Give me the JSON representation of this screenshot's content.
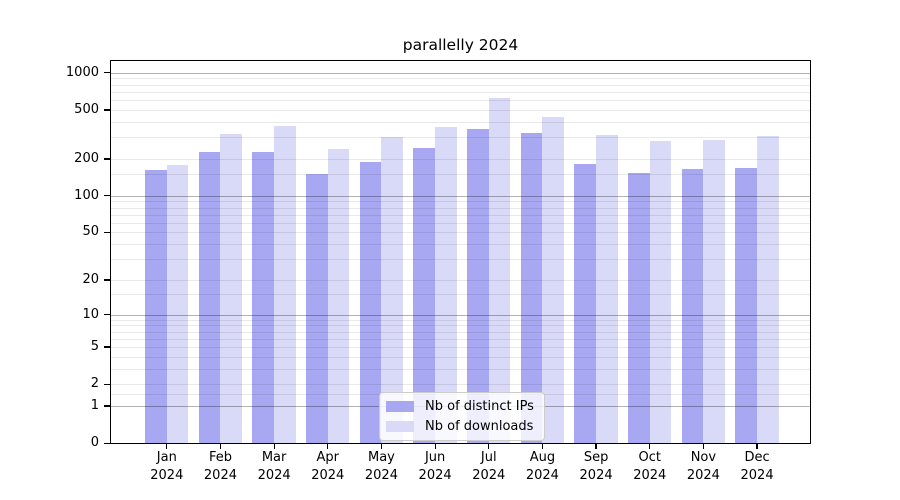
{
  "title": "parallelly 2024",
  "colors": {
    "distinct_ips_bar": "#a8a8f2",
    "downloads_bar": "#d9d9f8",
    "axis": "#000000",
    "major_grid": "rgba(0,0,0,0.30)",
    "minor_grid": "rgba(0,0,0,0.085)"
  },
  "chart_data": {
    "type": "bar",
    "title": "parallelly 2024",
    "categories": [
      "Jan",
      "Feb",
      "Mar",
      "Apr",
      "May",
      "Jun",
      "Jul",
      "Aug",
      "Sep",
      "Oct",
      "Nov",
      "Dec"
    ],
    "category_year": "2024",
    "series": [
      {
        "name": "Nb of distinct IPs",
        "color": "#a8a8f2",
        "values": [
          162,
          227,
          227,
          150,
          188,
          245,
          350,
          324,
          181,
          152,
          165,
          168
        ]
      },
      {
        "name": "Nb of downloads",
        "color": "#d9d9f8",
        "values": [
          178,
          318,
          369,
          240,
          300,
          363,
          620,
          437,
          312,
          279,
          284,
          308
        ]
      }
    ],
    "xlabel": "",
    "ylabel": "",
    "y_axis": {
      "scale": "log1p",
      "tick_labels": [
        "1000",
        "500",
        "200",
        "100",
        "50",
        "20",
        "10",
        "5",
        "2",
        "1",
        "0"
      ],
      "tick_values": [
        1000,
        500,
        200,
        100,
        50,
        20,
        10,
        5,
        2,
        1,
        0
      ],
      "ylim": [
        0,
        1260
      ]
    },
    "grid": {
      "enabled": true,
      "major_values": [
        1,
        10,
        100,
        1000
      ],
      "minor_mantissas": [
        1.5,
        2,
        3,
        4,
        5,
        6,
        7,
        8,
        9
      ],
      "minor_decades": [
        1,
        10,
        100
      ]
    },
    "legend_position": "lower-center"
  }
}
